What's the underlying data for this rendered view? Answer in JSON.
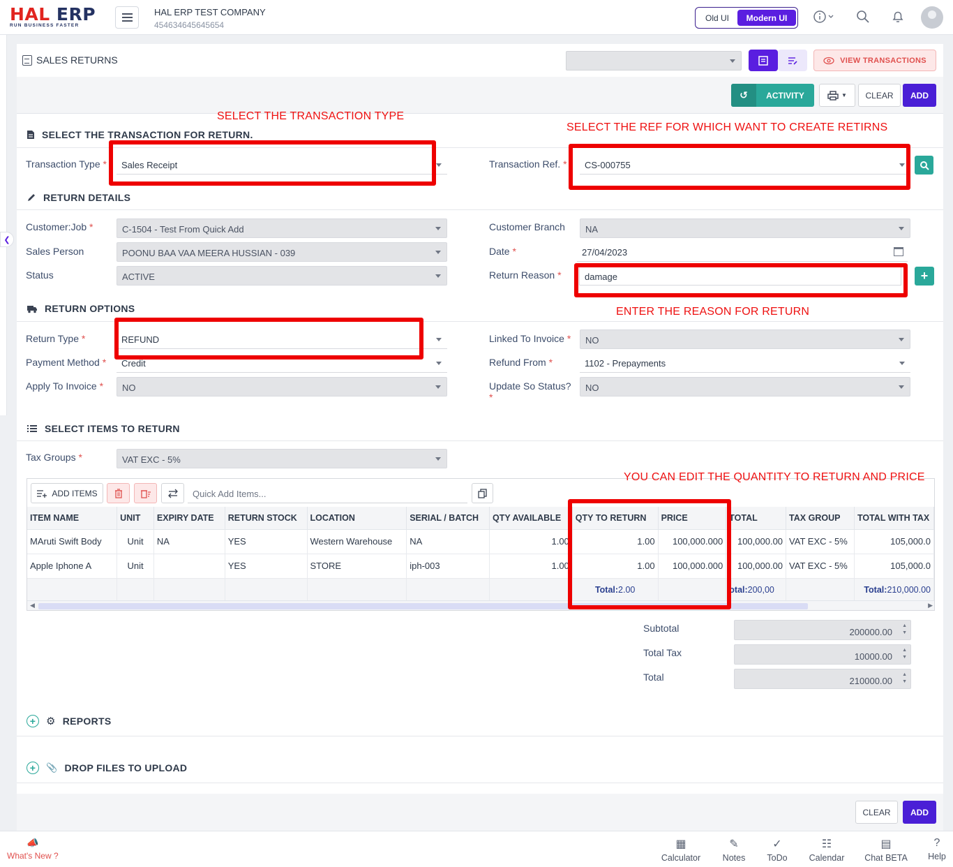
{
  "topbar": {
    "logo_main_1": "HAL",
    "logo_main_2": "ERP",
    "logo_tagline": "RUN BUSINESS FASTER",
    "company_name": "HAL ERP TEST COMPANY",
    "company_code": "454634645645654",
    "ui_old": "Old UI",
    "ui_modern": "Modern UI"
  },
  "page": {
    "title": "SALES RETURNS",
    "view_transactions": "VIEW TRANSACTIONS",
    "activity": "ACTIVITY",
    "clear": "CLEAR",
    "add": "ADD"
  },
  "select_transaction": {
    "heading": "SELECT THE TRANSACTION FOR RETURN.",
    "transaction_type_label": "Transaction Type",
    "transaction_type_value": "Sales Receipt",
    "transaction_ref_label": "Transaction Ref.",
    "transaction_ref_value": "CS-000755"
  },
  "return_details": {
    "heading": "RETURN DETAILS",
    "customer_job_label": "Customer:Job",
    "customer_job_value": "C-1504 - Test From Quick Add",
    "customer_branch_label": "Customer Branch",
    "customer_branch_value": "NA",
    "sales_person_label": "Sales Person",
    "sales_person_value": "POONU BAA VAA   MEERA HUSSIAN - 039",
    "date_label": "Date",
    "date_value": "27/04/2023",
    "status_label": "Status",
    "status_value": "ACTIVE",
    "return_reason_label": "Return Reason",
    "return_reason_value": "damage"
  },
  "return_options": {
    "heading": "RETURN OPTIONS",
    "return_type_label": "Return Type",
    "return_type_value": "REFUND",
    "linked_invoice_label": "Linked To Invoice",
    "linked_invoice_value": "NO",
    "payment_method_label": "Payment Method",
    "payment_method_value": "Credit",
    "refund_from_label": "Refund From",
    "refund_from_value": "1102 - Prepayments",
    "apply_invoice_label": "Apply To Invoice",
    "apply_invoice_value": "NO",
    "update_so_label": "Update So Status?",
    "update_so_value": "NO"
  },
  "items_section": {
    "heading": "SELECT ITEMS TO RETURN",
    "tax_groups_label": "Tax Groups",
    "tax_groups_value": "VAT EXC - 5%",
    "add_items": "ADD ITEMS",
    "quick_add_placeholder": "Quick Add Items...",
    "columns": [
      "ITEM NAME",
      "UNIT",
      "EXPIRY DATE",
      "RETURN STOCK",
      "LOCATION",
      "SERIAL / BATCH",
      "QTY AVAILABLE",
      "QTY TO RETURN",
      "PRICE",
      "TOTAL",
      "TAX GROUP",
      "TOTAL WITH TAX"
    ],
    "rows": [
      [
        "MAruti Swift Body",
        "Unit",
        "NA",
        "YES",
        "Western Warehouse",
        "NA",
        "1.00",
        "1.00",
        "100,000.000",
        "100,000.00",
        "VAT EXC - 5%",
        "105,000.0"
      ],
      [
        "Apple Iphone A",
        "Unit",
        "",
        "YES",
        "STORE",
        "iph-003",
        "1.00",
        "1.00",
        "100,000.000",
        "100,000.00",
        "VAT EXC - 5%",
        "105,000.0"
      ]
    ],
    "footer": {
      "total_word": "Total:",
      "qty_total": "2.00",
      "total_word_cut": "otal:",
      "amount_total": "200,00",
      "amount_with_tax_total": "210,000.00"
    }
  },
  "totals": {
    "subtotal_label": "Subtotal",
    "subtotal_value": "200000.00",
    "total_tax_label": "Total Tax",
    "total_tax_value": "10000.00",
    "total_label": "Total",
    "total_value": "210000.00"
  },
  "sections": {
    "reports": "REPORTS",
    "drop_files": "DROP FILES TO UPLOAD"
  },
  "bottombar": {
    "whats_new": "What's New ?",
    "items": [
      "Calculator",
      "Notes",
      "ToDo",
      "Calendar",
      "Chat BETA",
      "Help"
    ]
  },
  "annotations": {
    "select_type": "SELECT THE TRANSACTION TYPE",
    "select_ref": "SELECT THE REF FOR WHICH WANT TO CREATE RETIRNS",
    "enter_reason": "ENTER THE REASON FOR RETURN",
    "edit_qty": "YOU CAN EDIT THE QUANTITY TO RETURN AND PRICE"
  },
  "colors": {
    "primary": "#4a1fd6",
    "teal": "#2aa89a",
    "danger": "#e0504e",
    "annotation_red": "#ee0000"
  }
}
